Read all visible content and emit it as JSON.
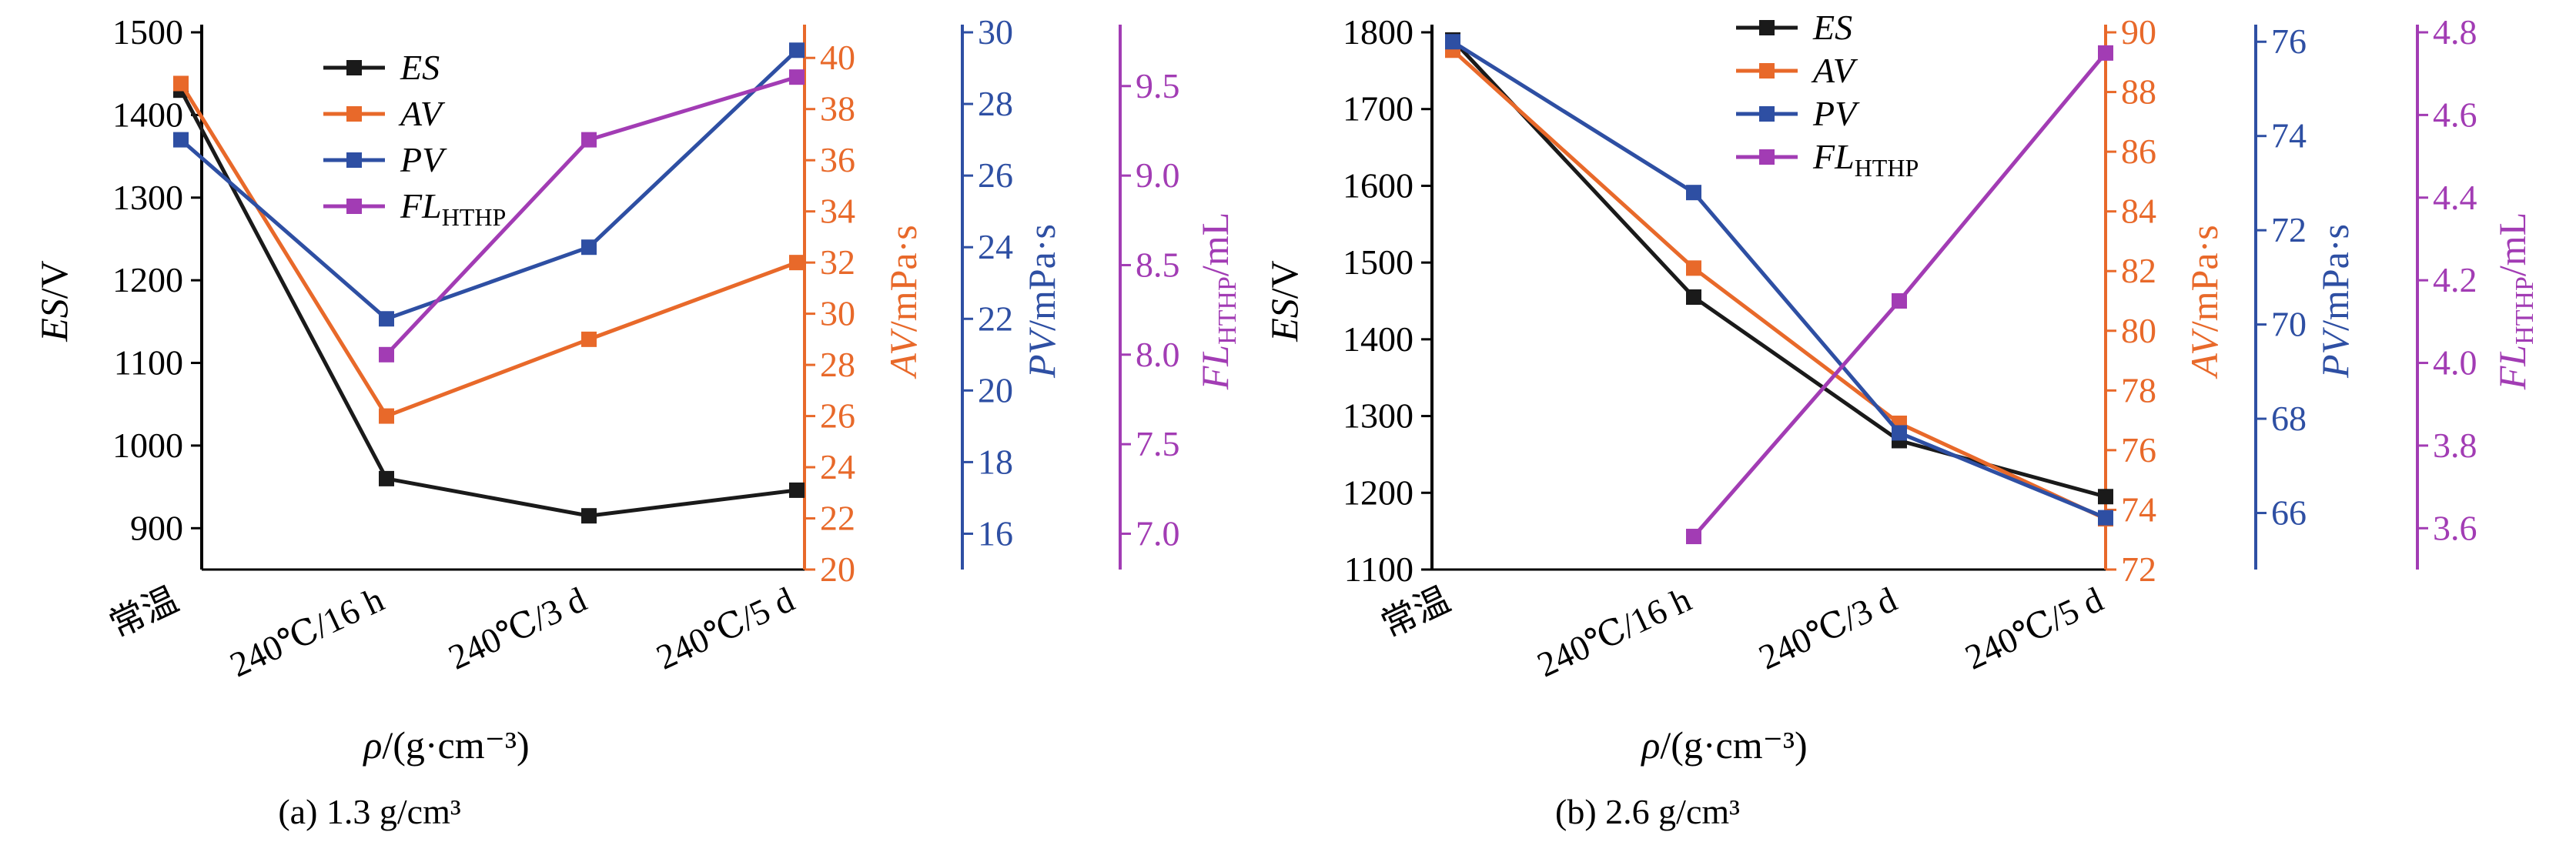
{
  "chart_data": [
    {
      "type": "line",
      "caption": "(a) 1.3 g/cm³",
      "categories": [
        "常温",
        "240℃/16 h",
        "240℃/3 d",
        "240℃/5 d"
      ],
      "xlabel": "ρ/(g·cm⁻³)",
      "axes": [
        {
          "id": "ES",
          "label_main": "ES",
          "label_rest": "/V",
          "side": "left",
          "range": [
            850,
            1500
          ],
          "ticks": [
            900,
            1000,
            1100,
            1200,
            1300,
            1400,
            1500
          ],
          "color": "#000000"
        },
        {
          "id": "AV",
          "label_main": "AV",
          "label_rest": "/mPa·s",
          "side": "right",
          "range": [
            20,
            41
          ],
          "ticks": [
            20,
            22,
            24,
            26,
            28,
            30,
            32,
            34,
            36,
            38,
            40
          ],
          "color": "#E8692A"
        },
        {
          "id": "PV",
          "label_main": "PV",
          "label_rest": "/mPa·s",
          "side": "right",
          "range": [
            15,
            30
          ],
          "ticks": [
            16,
            18,
            20,
            22,
            24,
            26,
            28,
            30
          ],
          "color": "#2E4FA3"
        },
        {
          "id": "FL",
          "label_main": "FL",
          "label_sub": "HTHP",
          "label_rest": "/mL",
          "side": "right",
          "range": [
            6.8,
            9.8
          ],
          "ticks": [
            "7.0",
            "7.5",
            "8.0",
            "8.5",
            "9.0",
            "9.5"
          ],
          "color": "#A23CB4"
        }
      ],
      "series": [
        {
          "name": "ES",
          "axis": "ES",
          "color": "#1A1A1A",
          "values": [
            1430,
            960,
            915,
            946
          ]
        },
        {
          "name": "AV",
          "axis": "AV",
          "color": "#E8692A",
          "values": [
            39,
            26,
            29,
            32
          ]
        },
        {
          "name": "PV",
          "axis": "PV",
          "color": "#2E4FA3",
          "values": [
            27,
            22,
            24,
            29.5
          ]
        },
        {
          "name": "FL",
          "name_sub": "HTHP",
          "axis": "FL",
          "color": "#A23CB4",
          "values": [
            null,
            8.0,
            9.2,
            9.55
          ]
        }
      ],
      "legend": "top-left"
    },
    {
      "type": "line",
      "caption": "(b) 2.6 g/cm³",
      "categories": [
        "常温",
        "240℃/16 h",
        "240℃/3 d",
        "240℃/5 d"
      ],
      "xlabel": "ρ/(g·cm⁻³)",
      "axes": [
        {
          "id": "ES",
          "label_main": "ES",
          "label_rest": "/V",
          "side": "left",
          "range": [
            1100,
            1800
          ],
          "ticks": [
            1100,
            1200,
            1300,
            1400,
            1500,
            1600,
            1700,
            1800
          ],
          "color": "#000000"
        },
        {
          "id": "AV",
          "label_main": "AV",
          "label_rest": "/mPa·s",
          "side": "right",
          "range": [
            72,
            90
          ],
          "ticks": [
            72,
            74,
            76,
            78,
            80,
            82,
            84,
            86,
            88,
            90
          ],
          "color": "#E8692A"
        },
        {
          "id": "PV",
          "label_main": "PV",
          "label_rest": "/mPa·s",
          "side": "right",
          "range": [
            64.8,
            76.2
          ],
          "ticks": [
            66,
            68,
            70,
            72,
            74,
            76
          ],
          "color": "#2E4FA3"
        },
        {
          "id": "FL",
          "label_main": "FL",
          "label_sub": "HTHP",
          "label_rest": "/mL",
          "side": "right",
          "range": [
            3.5,
            4.8
          ],
          "ticks": [
            "3.6",
            "3.8",
            "4.0",
            "4.2",
            "4.4",
            "4.6",
            "4.8"
          ],
          "color": "#A23CB4"
        }
      ],
      "series": [
        {
          "name": "ES",
          "axis": "ES",
          "color": "#1A1A1A",
          "values": [
            1790,
            1455,
            1268,
            1195
          ]
        },
        {
          "name": "AV",
          "axis": "AV",
          "color": "#E8692A",
          "values": [
            89.4,
            82.1,
            76.9,
            73.7
          ]
        },
        {
          "name": "PV",
          "axis": "PV",
          "color": "#2E4FA3",
          "values": [
            76,
            72.8,
            67.7,
            65.9
          ]
        },
        {
          "name": "FL",
          "name_sub": "HTHP",
          "axis": "FL",
          "color": "#A23CB4",
          "values": [
            null,
            3.58,
            4.15,
            4.75
          ]
        }
      ],
      "legend": "top-left"
    }
  ]
}
